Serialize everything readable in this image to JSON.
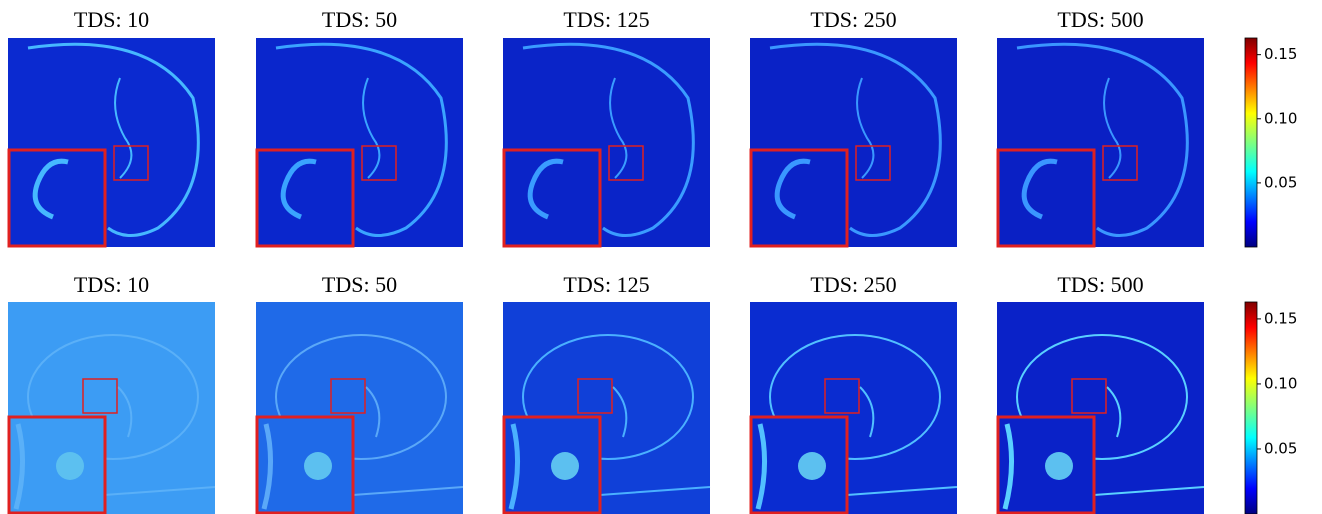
{
  "rows": [
    {
      "panels": [
        {
          "title": "TDS: 10"
        },
        {
          "title": "TDS: 50"
        },
        {
          "title": "TDS: 125"
        },
        {
          "title": "TDS: 250"
        },
        {
          "title": "TDS: 500"
        }
      ],
      "colorbar": {
        "lim": [
          0,
          0.163
        ],
        "ticks": [
          {
            "value": 0.05,
            "label": "0.05"
          },
          {
            "value": 0.1,
            "label": "0.10"
          },
          {
            "value": 0.15,
            "label": "0.15"
          }
        ]
      }
    },
    {
      "panels": [
        {
          "title": "TDS: 10"
        },
        {
          "title": "TDS: 50"
        },
        {
          "title": "TDS: 125"
        },
        {
          "title": "TDS: 250"
        },
        {
          "title": "TDS: 500"
        }
      ],
      "colorbar": {
        "lim": [
          0,
          0.163
        ],
        "ticks": [
          {
            "value": 0.05,
            "label": "0.05"
          },
          {
            "value": 0.1,
            "label": "0.10"
          },
          {
            "value": 0.15,
            "label": "0.15"
          }
        ]
      }
    }
  ]
}
